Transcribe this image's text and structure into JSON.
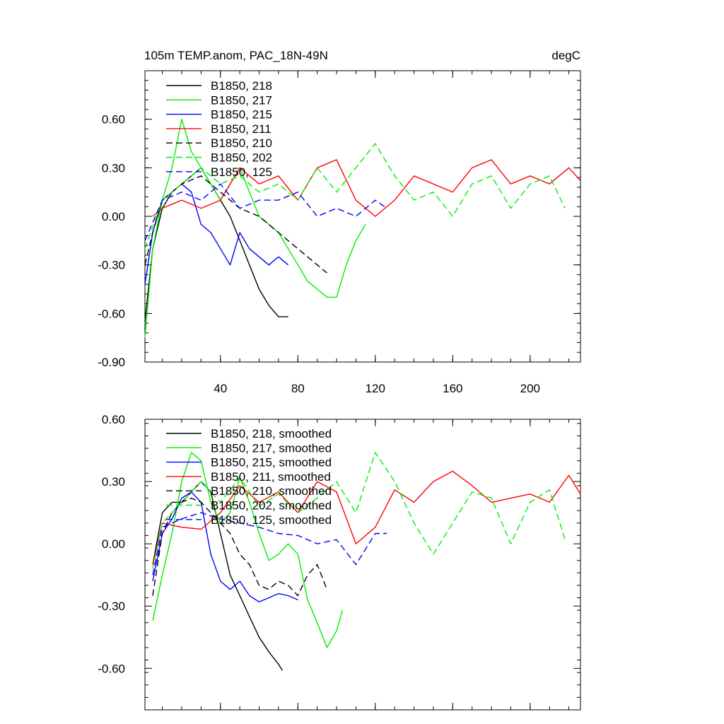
{
  "chart_data": [
    {
      "type": "line",
      "title": "105m TEMP.anom, PAC_18N-49N",
      "units_label": "degC",
      "xlim": [
        1,
        226
      ],
      "ylim": [
        -0.9,
        0.9
      ],
      "x_ticks": [
        40,
        80,
        120,
        160,
        200
      ],
      "y_ticks": [
        -0.9,
        -0.6,
        -0.3,
        0.0,
        0.3,
        0.6
      ],
      "y_tick_labels": [
        "-0.90",
        "-0.60",
        "-0.30",
        "0.00",
        "0.30",
        "0.60"
      ],
      "x_tick_labels": [
        "40",
        "80",
        "120",
        "160",
        "200"
      ],
      "grid": false,
      "legend_position": "top-left",
      "series": [
        {
          "name": "B1850, 218",
          "color": "#000000",
          "dash": false,
          "x": [
            1,
            5,
            10,
            15,
            20,
            25,
            30,
            35,
            40,
            45,
            50,
            55,
            60,
            65,
            70,
            75
          ],
          "y": [
            -0.65,
            -0.2,
            0.05,
            0.15,
            0.2,
            0.25,
            0.3,
            0.2,
            0.1,
            0.0,
            -0.15,
            -0.3,
            -0.45,
            -0.55,
            -0.62,
            -0.62
          ]
        },
        {
          "name": "B1850, 217",
          "color": "#00ee00",
          "dash": false,
          "x": [
            1,
            5,
            10,
            15,
            20,
            25,
            30,
            35,
            40,
            45,
            50,
            55,
            60,
            65,
            70,
            75,
            80,
            85,
            90,
            95,
            100,
            105,
            110,
            115
          ],
          "y": [
            -0.75,
            -0.2,
            0.1,
            0.3,
            0.6,
            0.4,
            0.3,
            0.2,
            0.1,
            0.2,
            0.3,
            0.15,
            0.0,
            -0.05,
            -0.1,
            -0.2,
            -0.3,
            -0.4,
            -0.45,
            -0.5,
            -0.5,
            -0.3,
            -0.15,
            -0.05
          ]
        },
        {
          "name": "B1850, 215",
          "color": "#0000ff",
          "dash": false,
          "x": [
            1,
            5,
            10,
            15,
            20,
            25,
            30,
            35,
            40,
            45,
            50,
            55,
            60,
            65,
            70,
            75
          ],
          "y": [
            -0.42,
            -0.1,
            0.1,
            0.15,
            0.2,
            0.15,
            -0.05,
            -0.1,
            -0.2,
            -0.3,
            -0.1,
            -0.2,
            -0.25,
            -0.3,
            -0.25,
            -0.3
          ]
        },
        {
          "name": "B1850, 211",
          "color": "#ff0000",
          "dash": false,
          "x": [
            5,
            10,
            20,
            30,
            40,
            50,
            60,
            70,
            80,
            90,
            100,
            110,
            120,
            130,
            140,
            150,
            160,
            170,
            180,
            190,
            200,
            210,
            220,
            226
          ],
          "y": [
            0.0,
            0.05,
            0.1,
            0.05,
            0.1,
            0.3,
            0.2,
            0.25,
            0.1,
            0.3,
            0.35,
            0.1,
            0.0,
            0.1,
            0.25,
            0.2,
            0.15,
            0.3,
            0.35,
            0.2,
            0.25,
            0.2,
            0.3,
            0.22
          ]
        },
        {
          "name": "B1850, 210",
          "color": "#000000",
          "dash": true,
          "x": [
            1,
            5,
            10,
            20,
            30,
            40,
            50,
            60,
            70,
            80,
            90,
            95
          ],
          "y": [
            -0.3,
            -0.1,
            0.1,
            0.2,
            0.25,
            0.15,
            0.05,
            0.0,
            -0.1,
            -0.2,
            -0.3,
            -0.35
          ]
        },
        {
          "name": "B1850, 202",
          "color": "#00ee00",
          "dash": true,
          "x": [
            1,
            10,
            20,
            30,
            40,
            50,
            60,
            70,
            80,
            90,
            100,
            110,
            120,
            130,
            140,
            150,
            160,
            170,
            180,
            190,
            200,
            210,
            218
          ],
          "y": [
            -0.2,
            0.1,
            0.2,
            0.3,
            0.2,
            0.25,
            0.15,
            0.2,
            0.1,
            0.3,
            0.15,
            0.3,
            0.45,
            0.25,
            0.1,
            0.15,
            0.0,
            0.2,
            0.25,
            0.05,
            0.2,
            0.25,
            0.05
          ]
        },
        {
          "name": "B1850, 125",
          "color": "#0000ff",
          "dash": true,
          "x": [
            1,
            10,
            20,
            30,
            40,
            50,
            60,
            70,
            80,
            90,
            100,
            110,
            120,
            126
          ],
          "y": [
            -0.15,
            0.1,
            0.15,
            0.1,
            0.2,
            0.05,
            0.1,
            0.1,
            0.15,
            0.0,
            0.05,
            0.0,
            0.1,
            0.05
          ]
        }
      ],
      "legend_labels": [
        "B1850, 218",
        "B1850, 217",
        "B1850, 215",
        "B1850, 211",
        "B1850, 210",
        "B1850, 202",
        "B1850, 125"
      ]
    },
    {
      "type": "line",
      "title": "",
      "xlim": [
        1,
        226
      ],
      "ylim": [
        -0.8,
        0.6
      ],
      "x_ticks": [
        40,
        80,
        120,
        160,
        200
      ],
      "y_ticks": [
        -0.6,
        -0.3,
        0.0,
        0.3,
        0.6
      ],
      "y_tick_labels": [
        "-0.60",
        "-0.30",
        "0.00",
        "0.30",
        "0.60"
      ],
      "grid": false,
      "legend_position": "top-left",
      "series": [
        {
          "name": "B1850, 218, smoothed",
          "color": "#000000",
          "dash": false,
          "x": [
            5,
            10,
            15,
            20,
            25,
            30,
            35,
            40,
            45,
            50,
            55,
            60,
            65,
            70,
            72
          ],
          "y": [
            -0.1,
            0.15,
            0.2,
            0.2,
            0.25,
            0.3,
            0.25,
            0.05,
            -0.15,
            -0.25,
            -0.35,
            -0.45,
            -0.52,
            -0.58,
            -0.61
          ]
        },
        {
          "name": "B1850, 217, smoothed",
          "color": "#00ee00",
          "dash": false,
          "x": [
            5,
            10,
            15,
            20,
            25,
            30,
            35,
            40,
            45,
            50,
            55,
            60,
            65,
            70,
            75,
            80,
            85,
            90,
            95,
            100,
            103
          ],
          "y": [
            -0.37,
            -0.15,
            0.05,
            0.3,
            0.44,
            0.4,
            0.2,
            0.1,
            0.15,
            0.32,
            0.2,
            0.05,
            -0.08,
            -0.05,
            0.0,
            -0.05,
            -0.27,
            -0.38,
            -0.5,
            -0.42,
            -0.32
          ]
        },
        {
          "name": "B1850, 215, smoothed",
          "color": "#0000ff",
          "dash": false,
          "x": [
            5,
            10,
            15,
            20,
            25,
            30,
            35,
            40,
            45,
            50,
            55,
            60,
            65,
            70,
            75,
            80
          ],
          "y": [
            -0.18,
            0.05,
            0.12,
            0.22,
            0.25,
            0.2,
            -0.05,
            -0.18,
            -0.22,
            -0.18,
            -0.25,
            -0.28,
            -0.26,
            -0.24,
            -0.25,
            -0.27
          ]
        },
        {
          "name": "B1850, 211, smoothed",
          "color": "#ff0000",
          "dash": false,
          "x": [
            5,
            10,
            20,
            30,
            40,
            50,
            60,
            70,
            80,
            90,
            100,
            110,
            120,
            130,
            140,
            150,
            160,
            170,
            180,
            190,
            200,
            210,
            220,
            226
          ],
          "y": [
            -0.1,
            0.1,
            0.08,
            0.07,
            0.15,
            0.28,
            0.2,
            0.25,
            0.15,
            0.3,
            0.25,
            0.0,
            0.08,
            0.26,
            0.2,
            0.3,
            0.35,
            0.28,
            0.2,
            0.22,
            0.24,
            0.2,
            0.33,
            0.24
          ]
        },
        {
          "name": "B1850, 210, smoothed",
          "color": "#000000",
          "dash": true,
          "x": [
            5,
            10,
            15,
            20,
            25,
            30,
            35,
            40,
            45,
            50,
            55,
            60,
            65,
            70,
            75,
            80,
            85,
            90,
            95
          ],
          "y": [
            -0.25,
            0.05,
            0.15,
            0.2,
            0.22,
            0.2,
            0.15,
            0.1,
            0.05,
            -0.05,
            -0.1,
            -0.2,
            -0.22,
            -0.18,
            -0.2,
            -0.25,
            -0.15,
            -0.1,
            -0.22
          ]
        },
        {
          "name": "B1850, 202, smoothed",
          "color": "#00ee00",
          "dash": true,
          "x": [
            5,
            10,
            20,
            30,
            40,
            50,
            60,
            70,
            80,
            90,
            100,
            110,
            120,
            130,
            140,
            150,
            160,
            170,
            180,
            190,
            200,
            210,
            218
          ],
          "y": [
            -0.12,
            0.1,
            0.2,
            0.3,
            0.2,
            0.32,
            0.18,
            0.24,
            0.15,
            0.22,
            0.3,
            0.15,
            0.44,
            0.3,
            0.1,
            -0.05,
            0.1,
            0.25,
            0.22,
            0.0,
            0.2,
            0.26,
            0.02
          ]
        },
        {
          "name": "B1850, 125, smoothed",
          "color": "#0000ff",
          "dash": true,
          "x": [
            5,
            10,
            20,
            30,
            40,
            50,
            60,
            70,
            80,
            90,
            100,
            110,
            120,
            126
          ],
          "y": [
            -0.15,
            0.08,
            0.12,
            0.15,
            0.12,
            0.1,
            0.08,
            0.05,
            0.04,
            0.0,
            0.02,
            -0.1,
            0.05,
            0.05
          ]
        }
      ],
      "legend_labels": [
        "B1850, 218, smoothed",
        "B1850, 217, smoothed",
        "B1850, 215, smoothed",
        "B1850, 211, smoothed",
        "B1850, 210, smoothed",
        "B1850, 202, smoothed",
        "B1850, 125, smoothed"
      ]
    }
  ]
}
